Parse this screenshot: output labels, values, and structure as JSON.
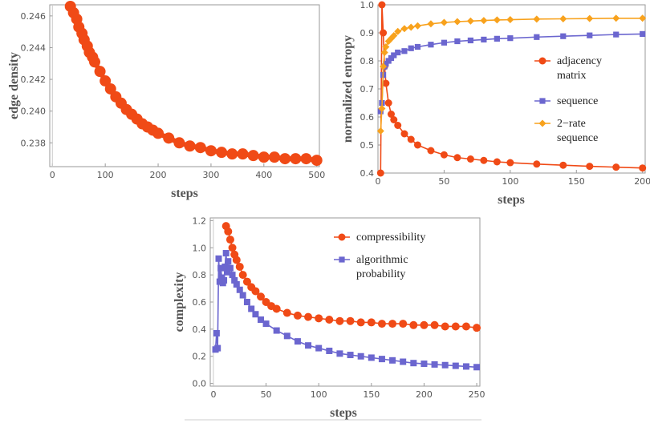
{
  "colors": {
    "orange_red": "#f04a16",
    "blue": "#6b66cf",
    "amber": "#f8a21d",
    "frame": "#9a9a9a",
    "tick_text": "#555555"
  },
  "chart_data": [
    {
      "type": "line",
      "id": "edge",
      "xlabel": "steps",
      "ylabel": "edge density",
      "xlim": [
        -5,
        505
      ],
      "ylim": [
        0.2365,
        0.2467
      ],
      "xticks": [
        0,
        100,
        200,
        300,
        400,
        500
      ],
      "yticks": [
        0.238,
        0.24,
        0.242,
        0.244,
        0.246
      ],
      "xtick_labels": [
        "0",
        "100",
        "200",
        "300",
        "400",
        "500"
      ],
      "ytick_labels": [
        "0.238",
        "0.240",
        "0.242",
        "0.244",
        "0.246"
      ],
      "series": [
        {
          "color": "orange_red",
          "marker": "circle",
          "x": [
            34,
            40,
            46,
            50,
            56,
            60,
            66,
            70,
            76,
            80,
            90,
            100,
            110,
            120,
            130,
            140,
            150,
            160,
            170,
            180,
            190,
            200,
            220,
            240,
            260,
            280,
            300,
            320,
            340,
            360,
            380,
            400,
            420,
            440,
            460,
            480,
            500
          ],
          "y": [
            0.2466,
            0.2462,
            0.2458,
            0.2453,
            0.2449,
            0.2445,
            0.2441,
            0.2437,
            0.2434,
            0.2431,
            0.2425,
            0.2419,
            0.2414,
            0.2409,
            0.2405,
            0.2401,
            0.2398,
            0.2395,
            0.2392,
            0.239,
            0.2388,
            0.2386,
            0.2383,
            0.238,
            0.2378,
            0.2377,
            0.2375,
            0.2374,
            0.2373,
            0.2373,
            0.2372,
            0.2371,
            0.2371,
            0.237,
            0.237,
            0.237,
            0.2369
          ]
        }
      ]
    },
    {
      "type": "line",
      "id": "entropy",
      "xlabel": "steps",
      "ylabel": "normalized entropy",
      "xlim": [
        0,
        202
      ],
      "ylim": [
        0.4,
        1.0
      ],
      "xticks": [
        0,
        50,
        100,
        150,
        200
      ],
      "yticks": [
        0.4,
        0.5,
        0.6,
        0.7,
        0.8,
        0.9,
        1.0
      ],
      "xtick_labels": [
        "0",
        "50",
        "100",
        "150",
        "200"
      ],
      "ytick_labels": [
        "0.4",
        "0.5",
        "0.6",
        "0.7",
        "0.8",
        "0.9",
        "1.0"
      ],
      "legend": {
        "placement": "right-middle"
      },
      "series": [
        {
          "name": "adjacency matrix",
          "legend_lines": [
            "adjacency",
            "matrix"
          ],
          "color": "orange_red",
          "marker": "circle",
          "x": [
            2,
            3,
            4,
            5,
            6,
            8,
            10,
            12,
            15,
            20,
            25,
            30,
            40,
            50,
            60,
            70,
            80,
            90,
            100,
            120,
            140,
            160,
            180,
            200
          ],
          "y": [
            0.4,
            1.0,
            0.9,
            0.78,
            0.72,
            0.65,
            0.61,
            0.59,
            0.57,
            0.54,
            0.52,
            0.5,
            0.48,
            0.465,
            0.455,
            0.45,
            0.445,
            0.44,
            0.437,
            0.432,
            0.428,
            0.424,
            0.421,
            0.418
          ]
        },
        {
          "name": "sequence",
          "legend_lines": [
            "sequence"
          ],
          "color": "blue",
          "marker": "square",
          "x": [
            2,
            3,
            4,
            5,
            6,
            8,
            10,
            12,
            15,
            20,
            25,
            30,
            40,
            50,
            60,
            70,
            80,
            90,
            100,
            120,
            140,
            160,
            180,
            200
          ],
          "y": [
            0.62,
            0.65,
            0.75,
            0.78,
            0.79,
            0.8,
            0.81,
            0.82,
            0.83,
            0.835,
            0.845,
            0.85,
            0.858,
            0.865,
            0.87,
            0.873,
            0.876,
            0.879,
            0.881,
            0.885,
            0.888,
            0.891,
            0.894,
            0.896
          ]
        },
        {
          "name": "2-rate sequence",
          "legend_lines": [
            "2−rate",
            "sequence"
          ],
          "color": "amber",
          "marker": "diamond",
          "x": [
            2,
            3,
            4,
            5,
            6,
            8,
            10,
            12,
            15,
            20,
            25,
            30,
            40,
            50,
            60,
            70,
            80,
            90,
            100,
            120,
            140,
            160,
            180,
            200
          ],
          "y": [
            0.55,
            0.63,
            0.78,
            0.83,
            0.85,
            0.87,
            0.88,
            0.89,
            0.905,
            0.915,
            0.92,
            0.925,
            0.932,
            0.937,
            0.94,
            0.942,
            0.944,
            0.946,
            0.947,
            0.949,
            0.95,
            0.951,
            0.952,
            0.952
          ]
        }
      ]
    },
    {
      "type": "line",
      "id": "complexity",
      "xlabel": "steps",
      "ylabel": "complexity",
      "xlim": [
        -3,
        253
      ],
      "ylim": [
        -0.02,
        1.22
      ],
      "xticks": [
        0,
        50,
        100,
        150,
        200,
        250
      ],
      "yticks": [
        0.0,
        0.2,
        0.4,
        0.6,
        0.8,
        1.0,
        1.2
      ],
      "xtick_labels": [
        "0",
        "50",
        "100",
        "150",
        "200",
        "250"
      ],
      "ytick_labels": [
        "0.0",
        "0.2",
        "0.4",
        "0.6",
        "0.8",
        "1.0",
        "1.2"
      ],
      "legend": {
        "placement": "top-right"
      },
      "series": [
        {
          "name": "compressibility",
          "legend_lines": [
            "compressibility"
          ],
          "color": "orange_red",
          "marker": "circle",
          "x": [
            12,
            14,
            16,
            18,
            20,
            22,
            25,
            28,
            32,
            36,
            40,
            45,
            50,
            55,
            60,
            70,
            80,
            90,
            100,
            110,
            120,
            130,
            140,
            150,
            160,
            170,
            180,
            190,
            200,
            210,
            220,
            230,
            240,
            250
          ],
          "y": [
            1.16,
            1.12,
            1.06,
            1.0,
            0.95,
            0.91,
            0.86,
            0.8,
            0.75,
            0.71,
            0.68,
            0.64,
            0.6,
            0.57,
            0.55,
            0.52,
            0.5,
            0.49,
            0.48,
            0.47,
            0.46,
            0.46,
            0.45,
            0.45,
            0.44,
            0.44,
            0.44,
            0.43,
            0.43,
            0.43,
            0.42,
            0.42,
            0.42,
            0.41
          ]
        },
        {
          "name": "algorithmic probability",
          "legend_lines": [
            "algorithmic",
            "probability"
          ],
          "color": "blue",
          "marker": "square",
          "x": [
            2,
            3,
            4,
            5,
            6,
            7,
            8,
            9,
            10,
            11,
            12,
            13,
            14,
            16,
            18,
            20,
            22,
            25,
            28,
            32,
            36,
            40,
            45,
            50,
            60,
            70,
            80,
            90,
            100,
            110,
            120,
            130,
            140,
            150,
            160,
            170,
            180,
            190,
            200,
            210,
            220,
            230,
            240,
            250
          ],
          "y": [
            0.25,
            0.37,
            0.26,
            0.92,
            0.75,
            0.85,
            0.78,
            0.74,
            0.76,
            0.86,
            0.96,
            0.82,
            0.9,
            0.85,
            0.8,
            0.76,
            0.73,
            0.69,
            0.65,
            0.6,
            0.55,
            0.51,
            0.47,
            0.44,
            0.39,
            0.35,
            0.31,
            0.28,
            0.26,
            0.24,
            0.22,
            0.21,
            0.2,
            0.19,
            0.18,
            0.17,
            0.16,
            0.15,
            0.145,
            0.14,
            0.135,
            0.13,
            0.125,
            0.12
          ]
        }
      ]
    }
  ]
}
